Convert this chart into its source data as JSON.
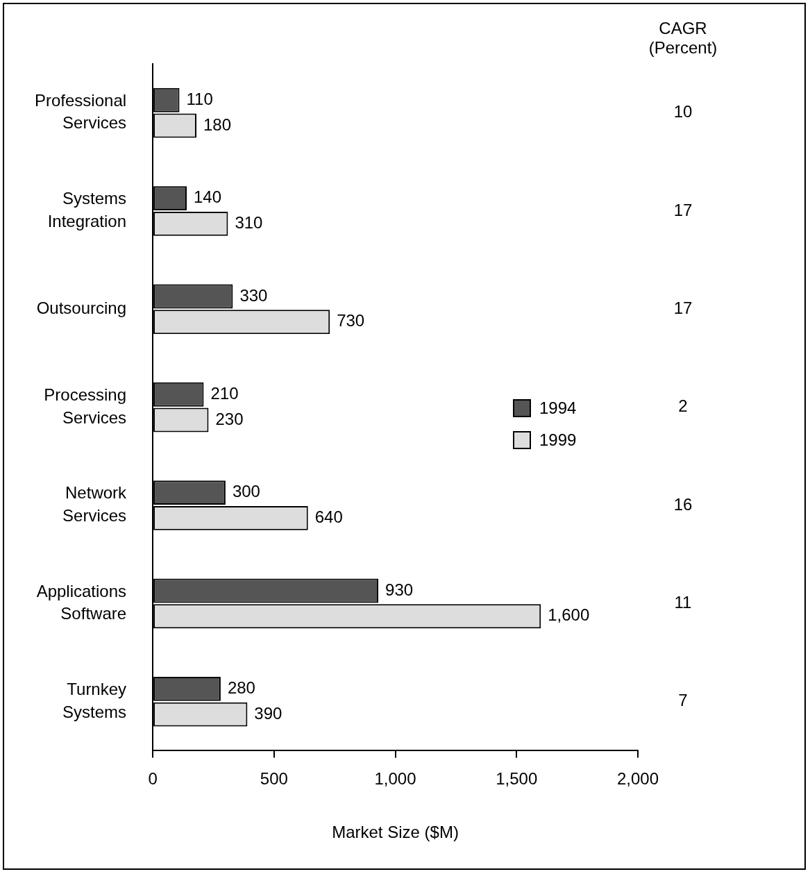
{
  "chart_data": {
    "type": "bar",
    "orientation": "horizontal",
    "xlabel": "Market Size ($M)",
    "categories": [
      "Professional Services",
      "Systems Integration",
      "Outsourcing",
      "Processing Services",
      "Network Services",
      "Applications Software",
      "Turnkey Systems"
    ],
    "series": [
      {
        "name": "1994",
        "color": "#555555",
        "values": [
          110,
          140,
          330,
          210,
          300,
          930,
          280
        ],
        "value_labels": [
          "110",
          "140",
          "330",
          "210",
          "300",
          "930",
          "280"
        ]
      },
      {
        "name": "1999",
        "color": "#dddddd",
        "values": [
          180,
          310,
          730,
          230,
          640,
          1600,
          390
        ],
        "value_labels": [
          "180",
          "310",
          "730",
          "230",
          "640",
          "1,600",
          "390"
        ]
      }
    ],
    "xlim": [
      0,
      2000
    ],
    "xticks": [
      0,
      500,
      {
        "value": 1000,
        "label": "1,000"
      },
      {
        "value": 1500,
        "label": "1,500"
      },
      {
        "value": 2000,
        "label": "2,000"
      }
    ],
    "grid": false,
    "legend": "right",
    "annotations": [
      "CAGR\n(Percent)",
      "10",
      "17",
      "17",
      "2",
      "16",
      "11",
      "7"
    ]
  }
}
